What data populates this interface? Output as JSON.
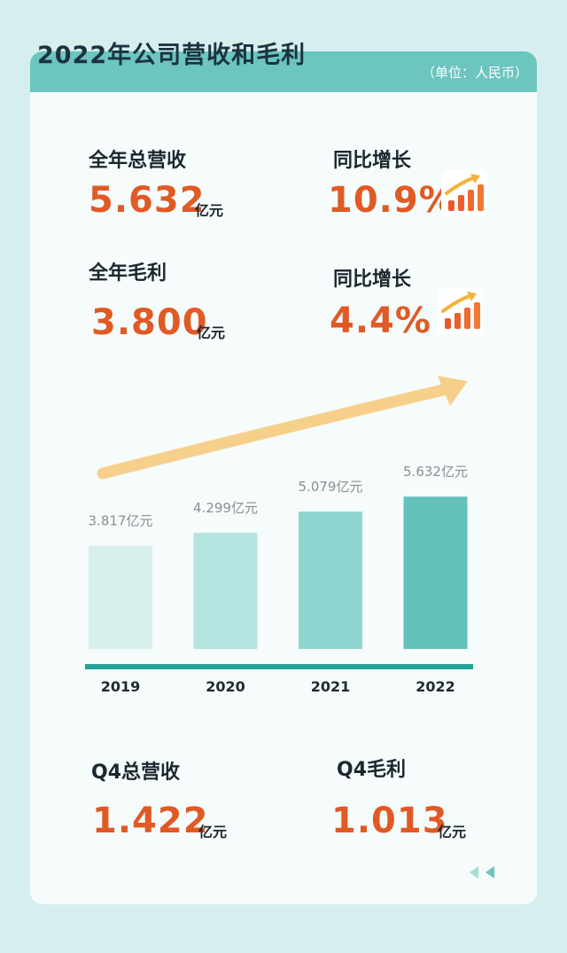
{
  "title": "2022年公司营收和毛利",
  "unit": "（单位：人民币）",
  "kpis": {
    "revenue": {
      "label": "全年总营收",
      "value": "5.632",
      "unit": "亿元"
    },
    "revenue_growth": {
      "label": "同比增长",
      "value": "10.9%"
    },
    "profit": {
      "label": "全年毛利",
      "value": "3.800",
      "unit": "亿元"
    },
    "profit_growth": {
      "label": "同比增长",
      "value": "4.4%"
    },
    "q4_revenue": {
      "label": "Q4总营收",
      "value": "1.422",
      "unit": "亿元"
    },
    "q4_profit": {
      "label": "Q4毛利",
      "value": "1.013",
      "unit": "亿元"
    }
  },
  "icons": {
    "growth": "bar-chart-up-arrow-icon",
    "trend": "curved-arrow-icon",
    "nav": "double-left-arrow-icon"
  },
  "colors": {
    "header": "#6cc5be",
    "value": "#e05a25",
    "bars": [
      "#d7f0ee",
      "#b6e4e0",
      "#8fd5cf",
      "#63c2b9"
    ],
    "baseline": "#23a397",
    "trend_arrow": "#f6d08a"
  },
  "chart_data": {
    "type": "bar",
    "categories": [
      "2019",
      "2020",
      "2021",
      "2022"
    ],
    "values": [
      3.817,
      4.299,
      5.079,
      5.632
    ],
    "data_labels": [
      "3.817亿元",
      "4.299亿元",
      "5.079亿元",
      "5.632亿元"
    ],
    "ylim": [
      0,
      6
    ],
    "grid": false
  }
}
